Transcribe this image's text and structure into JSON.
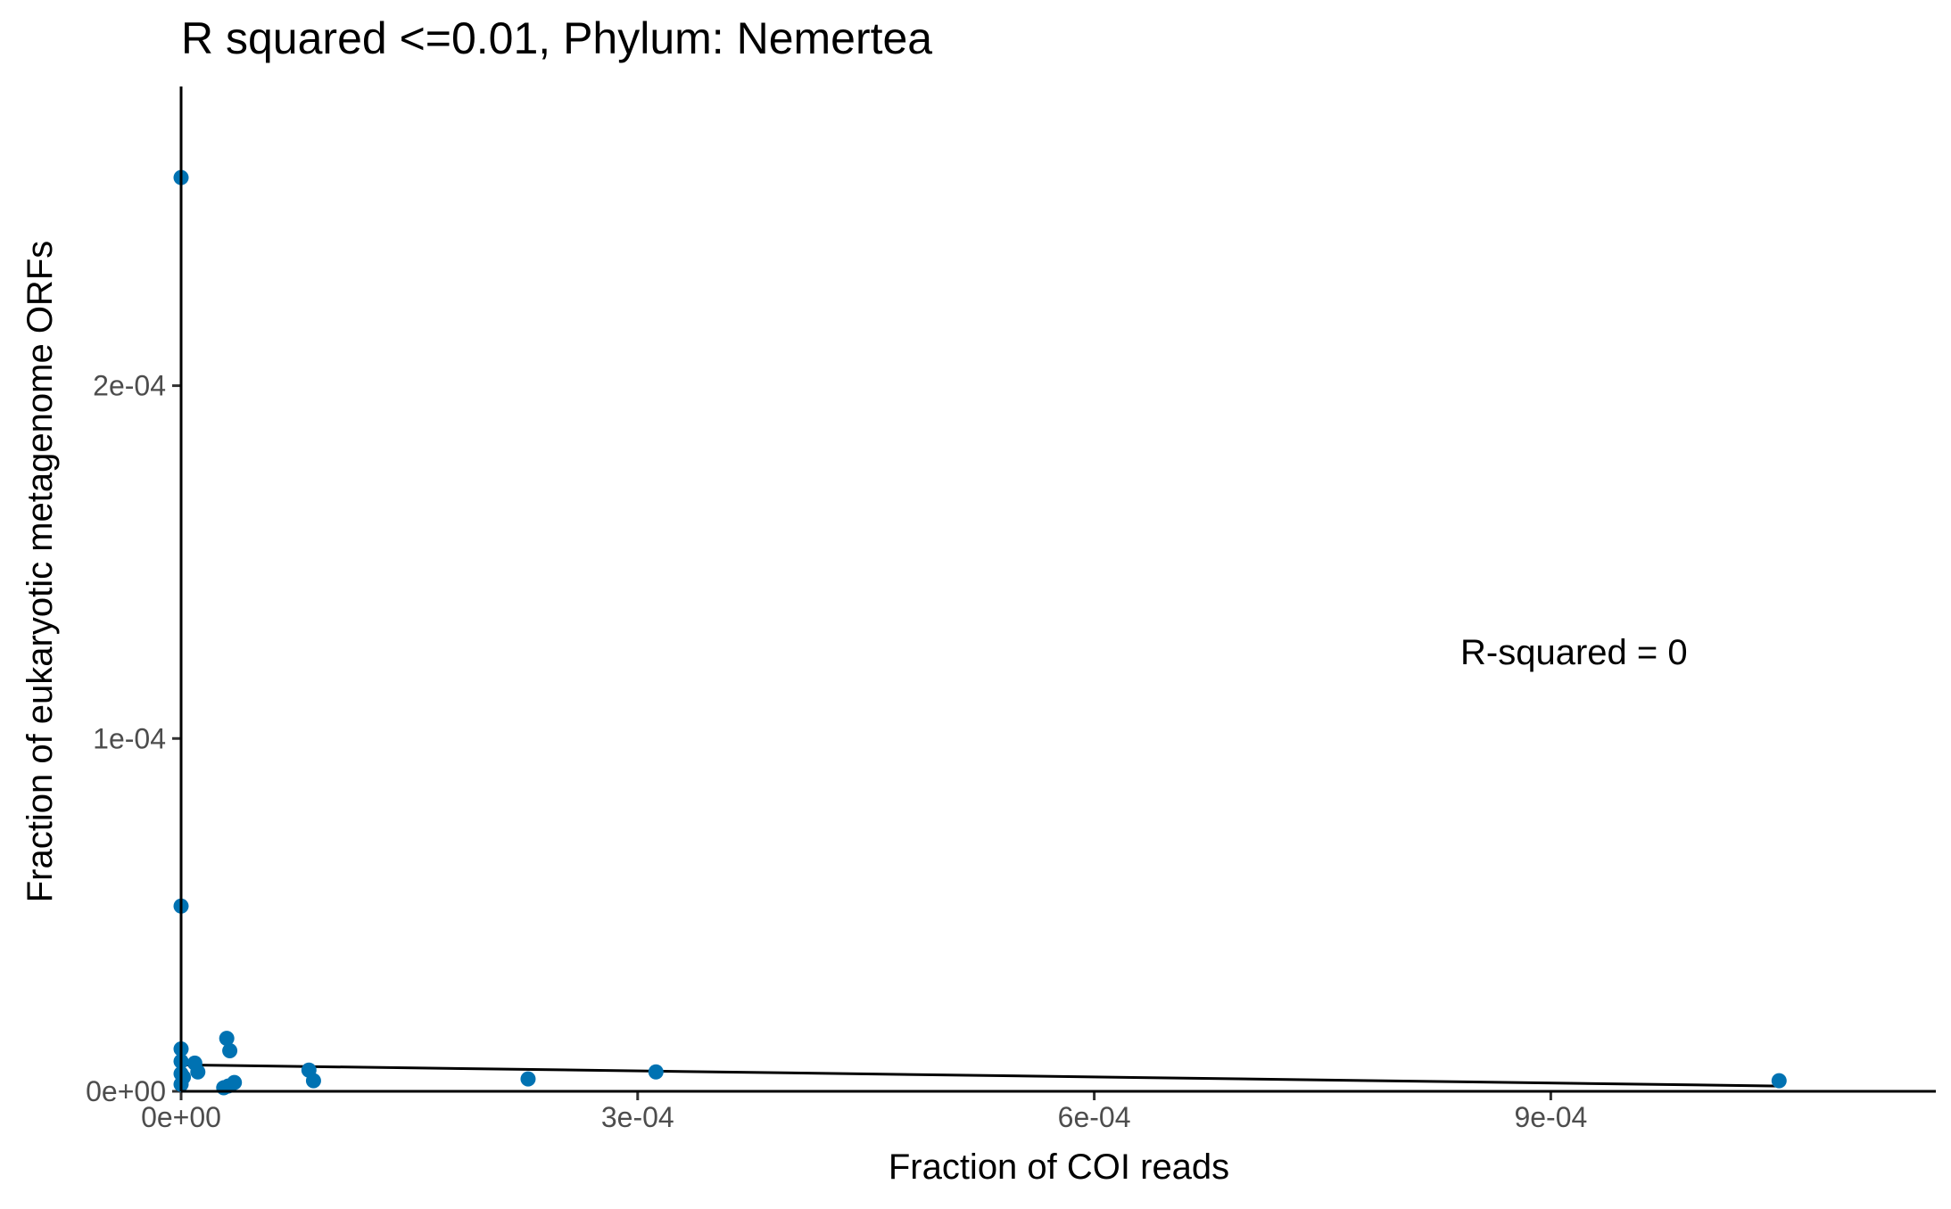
{
  "chart_data": {
    "type": "scatter",
    "title": "R squared <=0.01, Phylum:  Nemertea",
    "xlabel": "Fraction of COI reads",
    "ylabel": "Fraction of eukaryotic metagenome ORFs",
    "xlim": [
      0,
      0.001153
    ],
    "ylim": [
      0,
      0.0002848
    ],
    "x_ticks": [
      0,
      0.0003,
      0.0006,
      0.0009
    ],
    "x_tick_labels": [
      "0e+00",
      "3e-04",
      "6e-04",
      "9e-04"
    ],
    "y_ticks": [
      0,
      0.0001,
      0.0002
    ],
    "y_tick_labels": [
      "0e+00",
      "1e-04",
      "2e-04"
    ],
    "grid": false,
    "annotation": "R-squared =  0",
    "point_color": "#0072B2",
    "line_color": "#000000",
    "points": [
      {
        "x": 0.0,
        "y": 0.000259
      },
      {
        "x": 0.0,
        "y": 5.25e-05
      },
      {
        "x": 0.0,
        "y": 1.2e-05
      },
      {
        "x": 0.0,
        "y": 8.5e-06
      },
      {
        "x": 0.0,
        "y": 5e-06
      },
      {
        "x": 0.0,
        "y": 2e-06
      },
      {
        "x": 1.5e-06,
        "y": 4e-06
      },
      {
        "x": 9e-06,
        "y": 8e-06
      },
      {
        "x": 1.1e-05,
        "y": 5.5e-06
      },
      {
        "x": 3e-05,
        "y": 1.5e-05
      },
      {
        "x": 3.2e-05,
        "y": 1.15e-05
      },
      {
        "x": 2.8e-05,
        "y": 1e-06
      },
      {
        "x": 3.1e-05,
        "y": 1.5e-06
      },
      {
        "x": 3.5e-05,
        "y": 2.5e-06
      },
      {
        "x": 8.4e-05,
        "y": 6e-06
      },
      {
        "x": 8.7e-05,
        "y": 3e-06
      },
      {
        "x": 0.000228,
        "y": 3.5e-06
      },
      {
        "x": 0.000312,
        "y": 5.5e-06
      },
      {
        "x": 0.00105,
        "y": 3e-06
      }
    ],
    "fit_line": {
      "x": [
        0.0,
        0.00105
      ],
      "y": [
        7.5e-06,
        1.5e-06
      ]
    }
  }
}
